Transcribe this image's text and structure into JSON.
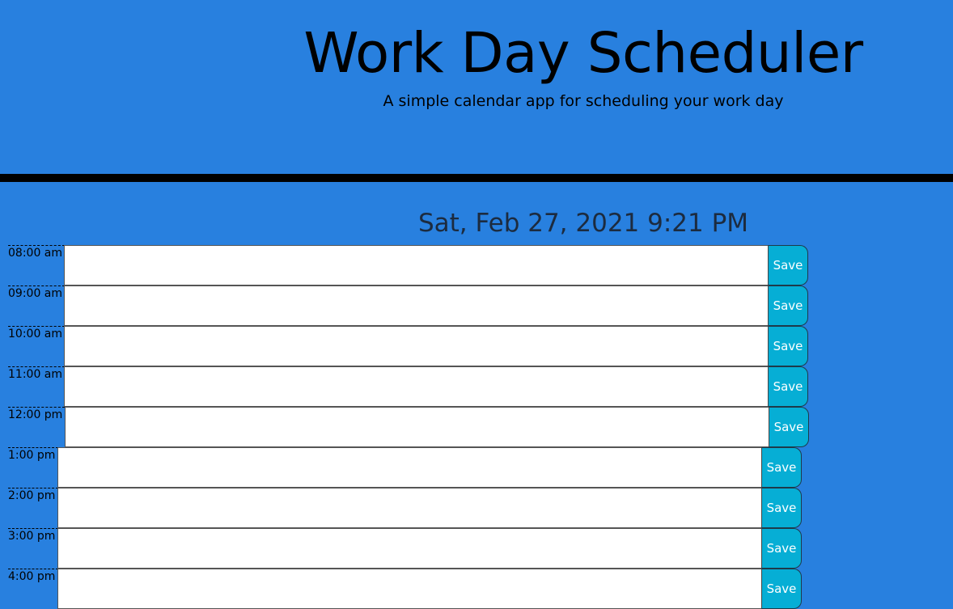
{
  "header": {
    "title": "Work Day Scheduler",
    "subtitle": "A simple calendar app for scheduling your work day"
  },
  "current_day": "Sat, Feb 27, 2021 9:21 PM",
  "colors": {
    "background": "#2880df",
    "divider": "#000000",
    "save_button": "#06aed5",
    "textarea": "#ffffff"
  },
  "time_blocks": [
    {
      "hour": "08:00 am",
      "description": "",
      "save_label": "Save"
    },
    {
      "hour": "09:00 am",
      "description": "",
      "save_label": "Save"
    },
    {
      "hour": "10:00 am",
      "description": "",
      "save_label": "Save"
    },
    {
      "hour": "11:00 am",
      "description": "",
      "save_label": "Save"
    },
    {
      "hour": "12:00 pm",
      "description": "",
      "save_label": "Save"
    },
    {
      "hour": "1:00 pm",
      "description": "",
      "save_label": "Save"
    },
    {
      "hour": "2:00 pm",
      "description": "",
      "save_label": "Save"
    },
    {
      "hour": "3:00 pm",
      "description": "",
      "save_label": "Save"
    },
    {
      "hour": "4:00 pm",
      "description": "",
      "save_label": "Save"
    }
  ]
}
